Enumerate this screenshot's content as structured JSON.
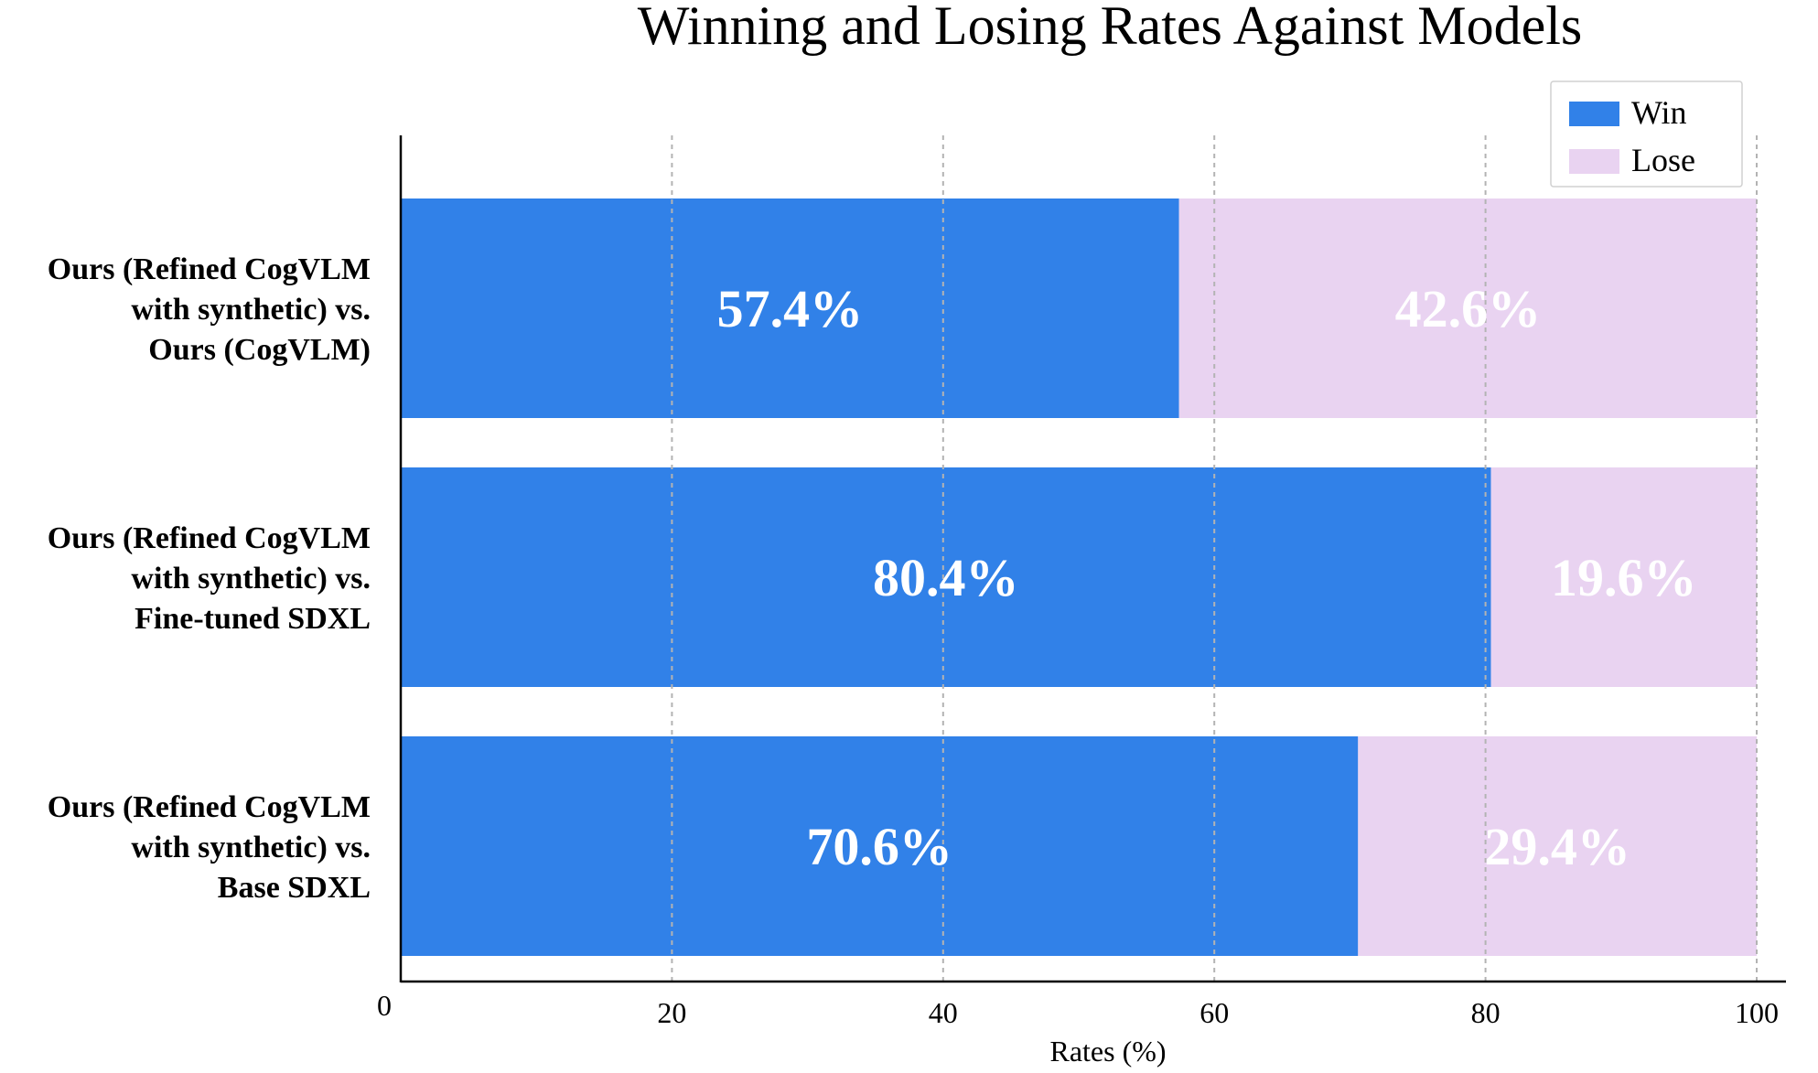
{
  "chart_data": {
    "type": "bar",
    "orientation": "horizontal",
    "stacked": true,
    "title": "Winning and Losing Rates Against Models",
    "xlabel": "Rates (%)",
    "ylabel": "",
    "xlim": [
      0,
      100
    ],
    "x_ticks": [
      "0",
      "20",
      "40",
      "60",
      "80",
      "100"
    ],
    "grid": "vertical dashed",
    "legend_position": "top-right",
    "categories": [
      [
        "Ours (Refined CogVLM",
        "with synthetic) vs.",
        "Ours (CogVLM)"
      ],
      [
        "Ours (Refined CogVLM",
        "with synthetic) vs.",
        "Fine-tuned SDXL"
      ],
      [
        "Ours (Refined CogVLM",
        "with synthetic) vs.",
        "Base SDXL"
      ]
    ],
    "series": [
      {
        "name": "Win",
        "color": "#3181e8",
        "values": [
          57.4,
          80.4,
          70.6
        ],
        "labels": [
          "57.4%",
          "80.4%",
          "70.6%"
        ]
      },
      {
        "name": "Lose",
        "color": "#e9d3f1",
        "values": [
          42.6,
          19.6,
          29.4
        ],
        "labels": [
          "42.6%",
          "19.6%",
          "29.4%"
        ]
      }
    ]
  }
}
